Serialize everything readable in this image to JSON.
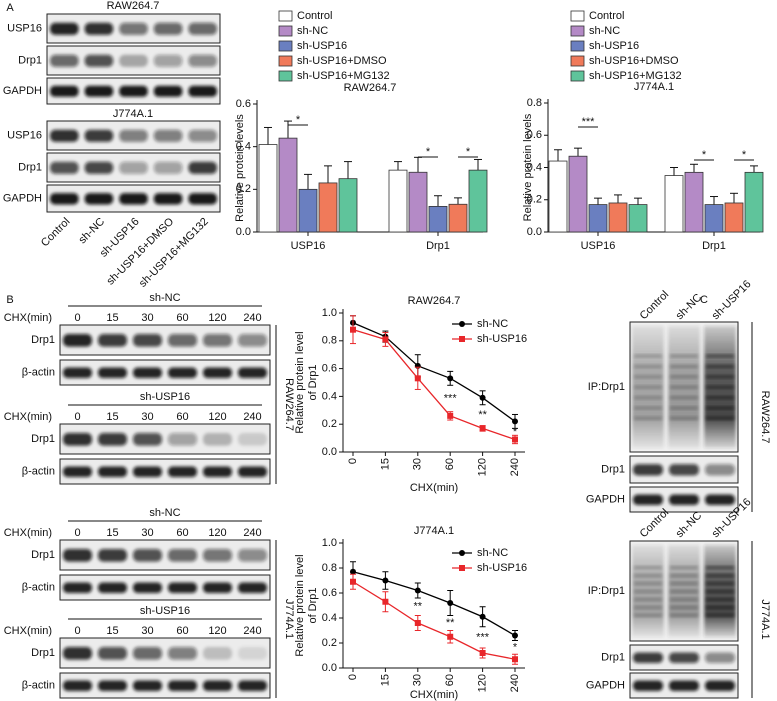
{
  "panel_labels": [
    "A",
    "B",
    "C"
  ],
  "panel_a": {
    "lanes": [
      "Control",
      "sh-NC",
      "sh-USP16",
      "sh-USP16+DMSO",
      "sh-USP16+MG132"
    ],
    "blots": [
      {
        "title": "RAW264.7",
        "rows": [
          "USP16",
          "Drp1",
          "GAPDH"
        ]
      },
      {
        "title": "J774A.1",
        "rows": [
          "USP16",
          "Drp1",
          "GAPDH"
        ]
      }
    ]
  },
  "panel_b": {
    "time_label": "CHX(min)",
    "times": [
      0,
      15,
      30,
      60,
      120,
      240
    ],
    "blots": [
      {
        "cell": "RAW264.7",
        "groups": [
          {
            "title": "sh-NC",
            "rows": [
              "Drp1",
              "β-actin"
            ]
          },
          {
            "title": "sh-USP16",
            "rows": [
              "Drp1",
              "β-actin"
            ]
          }
        ]
      },
      {
        "cell": "J774A.1",
        "groups": [
          {
            "title": "sh-NC",
            "rows": [
              "Drp1",
              "β-actin"
            ]
          },
          {
            "title": "sh-USP16",
            "rows": [
              "Drp1",
              "β-actin"
            ]
          }
        ]
      }
    ]
  },
  "panel_c": {
    "blots": [
      {
        "cell": "RAW264.7",
        "lanes": [
          "Control",
          "sh-NC",
          "sh-USP16"
        ],
        "rows": [
          "IP:Drp1",
          "Drp1",
          "GAPDH"
        ]
      },
      {
        "cell": "J774A.1",
        "lanes": [
          "Control",
          "sh-NC",
          "sh-USP16"
        ],
        "rows": [
          "IP:Drp1",
          "Drp1",
          "GAPDH"
        ]
      }
    ]
  },
  "chart_data": [
    {
      "type": "bar",
      "title": "RAW264.7",
      "y_label": "Relative protein levels",
      "categories": [
        "USP16",
        "Drp1"
      ],
      "series": [
        {
          "name": "Control",
          "color": "#ffffff",
          "values": [
            0.41,
            0.29
          ],
          "errors": [
            0.08,
            0.04
          ]
        },
        {
          "name": "sh-NC",
          "color": "#b48ac6",
          "values": [
            0.44,
            0.28
          ],
          "errors": [
            0.08,
            0.07
          ]
        },
        {
          "name": "sh-USP16",
          "color": "#6a7fc0",
          "values": [
            0.2,
            0.12
          ],
          "errors": [
            0.07,
            0.05
          ]
        },
        {
          "name": "sh-USP16+DMSO",
          "color": "#f07a5a",
          "values": [
            0.23,
            0.13
          ],
          "errors": [
            0.08,
            0.03
          ]
        },
        {
          "name": "sh-USP16+MG132",
          "color": "#5fc49b",
          "values": [
            0.25,
            0.29
          ],
          "errors": [
            0.08,
            0.05
          ]
        }
      ],
      "ylim": [
        0,
        0.6
      ],
      "yticks": [
        {
          "value": 0,
          "label": "0.0"
        },
        0.2,
        0.4,
        0.6
      ],
      "annotations": [
        "*",
        "*",
        "*"
      ]
    },
    {
      "type": "bar",
      "title": "J774A.1",
      "y_label": "Relative protein levels",
      "categories": [
        "USP16",
        "Drp1"
      ],
      "series": [
        {
          "name": "Control",
          "color": "#ffffff",
          "values": [
            0.44,
            0.35
          ],
          "errors": [
            0.07,
            0.05
          ]
        },
        {
          "name": "sh-NC",
          "color": "#b48ac6",
          "values": [
            0.47,
            0.37
          ],
          "errors": [
            0.05,
            0.05
          ]
        },
        {
          "name": "sh-USP16",
          "color": "#6a7fc0",
          "values": [
            0.17,
            0.17
          ],
          "errors": [
            0.04,
            0.05
          ]
        },
        {
          "name": "sh-USP16+DMSO",
          "color": "#f07a5a",
          "values": [
            0.18,
            0.18
          ],
          "errors": [
            0.05,
            0.06
          ]
        },
        {
          "name": "sh-USP16+MG132",
          "color": "#5fc49b",
          "values": [
            0.17,
            0.37
          ],
          "errors": [
            0.04,
            0.04
          ]
        }
      ],
      "ylim": [
        0,
        0.8
      ],
      "yticks": [
        {
          "value": 0,
          "label": "0.0"
        },
        0.2,
        0.4,
        0.6,
        0.8
      ],
      "annotations": [
        "***",
        "*",
        "*"
      ]
    },
    {
      "type": "line",
      "title": "RAW264.7",
      "y_label": [
        "Relative protein level",
        "of Drp1"
      ],
      "x_label": "CHX(min)",
      "categories": [
        "0",
        "15",
        "30",
        "60",
        "120",
        "240"
      ],
      "series": [
        {
          "name": "sh-NC",
          "color": "#000000",
          "marker": "circle",
          "values": [
            0.93,
            0.83,
            0.62,
            0.53,
            0.39,
            0.22
          ],
          "errors": [
            0.05,
            0.04,
            0.08,
            0.05,
            0.05,
            0.05
          ]
        },
        {
          "name": "sh-USP16",
          "color": "#e8262a",
          "marker": "square",
          "values": [
            0.88,
            0.81,
            0.53,
            0.26,
            0.17,
            0.09
          ],
          "errors": [
            0.1,
            0.05,
            0.08,
            0.03,
            0.02,
            0.03
          ]
        }
      ],
      "ylim": [
        0,
        1
      ],
      "yticks": [
        {
          "value": 0,
          "label": "0.0"
        },
        0.2,
        0.4,
        0.6,
        0.8,
        {
          "value": 1,
          "label": "1.0"
        }
      ],
      "annotations": [
        "***",
        "**",
        "*"
      ]
    },
    {
      "type": "line",
      "title": "J774A.1",
      "y_label": [
        "Relative protein level",
        "of Drp1"
      ],
      "x_label": "CHX(min)",
      "categories": [
        "0",
        "15",
        "30",
        "60",
        "120",
        "240"
      ],
      "series": [
        {
          "name": "sh-NC",
          "color": "#000000",
          "marker": "circle",
          "values": [
            0.77,
            0.7,
            0.62,
            0.52,
            0.41,
            0.26
          ],
          "errors": [
            0.08,
            0.07,
            0.06,
            0.1,
            0.08,
            0.04
          ]
        },
        {
          "name": "sh-USP16",
          "color": "#e8262a",
          "marker": "square",
          "values": [
            0.69,
            0.53,
            0.36,
            0.25,
            0.12,
            0.07
          ],
          "errors": [
            0.06,
            0.08,
            0.06,
            0.05,
            0.04,
            0.04
          ]
        }
      ],
      "ylim": [
        0,
        1
      ],
      "yticks": [
        {
          "value": 0,
          "label": "0.0"
        },
        0.2,
        0.4,
        0.6,
        0.8,
        {
          "value": 1,
          "label": "1.0"
        }
      ],
      "annotations": [
        "**",
        "**",
        "***",
        "*"
      ]
    }
  ]
}
